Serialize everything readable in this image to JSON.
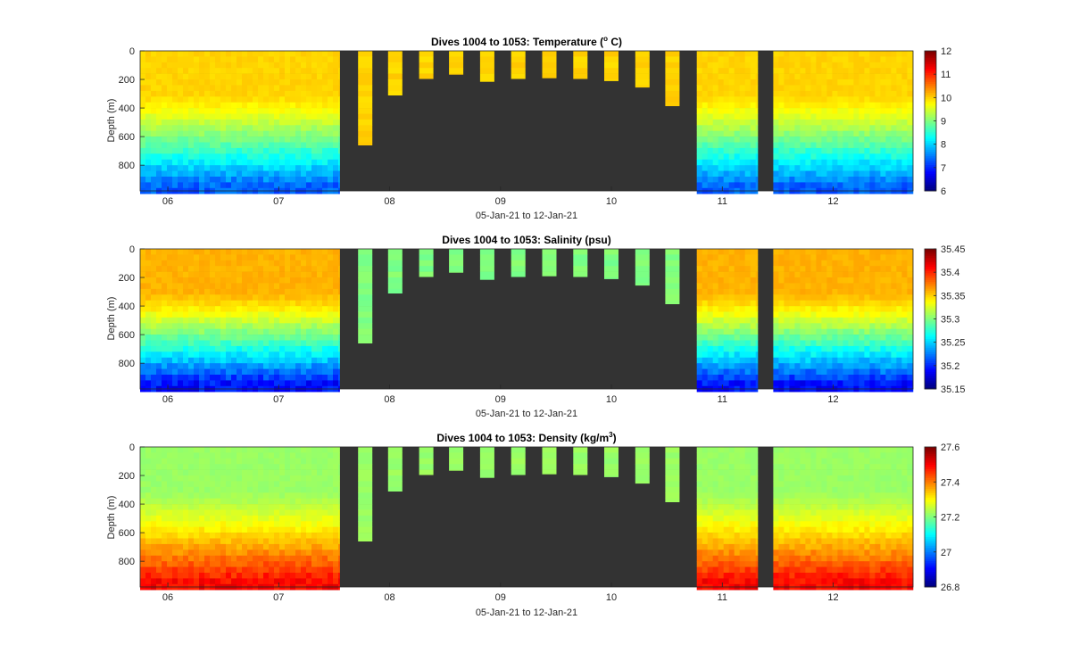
{
  "chart_data": [
    {
      "type": "heatmap",
      "title": "Dives 1004 to 1053: Temperature",
      "title_unit": "(",
      "title_unit_sup": "o",
      "title_unit_end": " C)",
      "xlabel": "05-Jan-21 to 12-Jan-21",
      "ylabel": "Depth (m)",
      "xticks": [
        "06",
        "07",
        "08",
        "09",
        "10",
        "11",
        "12"
      ],
      "yticks": [
        "0",
        "200",
        "400",
        "600",
        "800"
      ],
      "ylim": [
        0,
        980
      ],
      "colorbar": {
        "min": 6,
        "max": 12,
        "ticks": [
          "12",
          "11",
          "10",
          "9",
          "8",
          "7",
          "6"
        ]
      },
      "surface_value": 10.0,
      "deep_value": 7.3,
      "shallow_value": 10.0,
      "variability": 0.35
    },
    {
      "type": "heatmap",
      "title": "Dives 1004 to 1053: Salinity (psu)",
      "title_unit": "",
      "title_unit_sup": "",
      "title_unit_end": "",
      "xlabel": "05-Jan-21 to 12-Jan-21",
      "ylabel": "Depth (m)",
      "xticks": [
        "06",
        "07",
        "08",
        "09",
        "10",
        "11",
        "12"
      ],
      "yticks": [
        "0",
        "200",
        "400",
        "600",
        "800"
      ],
      "ylim": [
        0,
        980
      ],
      "colorbar": {
        "min": 35.15,
        "max": 35.45,
        "ticks": [
          "35.45",
          "35.4",
          "35.35",
          "35.3",
          "35.25",
          "35.2",
          "35.15"
        ]
      },
      "surface_value": 35.36,
      "deep_value": 35.19,
      "shallow_value": 35.3,
      "variability": 0.02
    },
    {
      "type": "heatmap",
      "title": "Dives 1004 to 1053: Density (kg/m",
      "title_unit": "",
      "title_unit_sup": "3",
      "title_unit_end": ")",
      "xlabel": "05-Jan-21 to 12-Jan-21",
      "ylabel": "Depth (m)",
      "xticks": [
        "06",
        "07",
        "08",
        "09",
        "10",
        "11",
        "12"
      ],
      "yticks": [
        "0",
        "200",
        "400",
        "600",
        "800"
      ],
      "ylim": [
        0,
        980
      ],
      "colorbar": {
        "min": 26.8,
        "max": 27.6,
        "ticks": [
          "27.6",
          "27.4",
          "27.2",
          "27",
          "26.8"
        ]
      },
      "surface_value": 27.22,
      "deep_value": 27.5,
      "shallow_value": 27.22,
      "variability": 0.04
    }
  ],
  "dives": {
    "day_range": [
      5.75,
      12.72
    ],
    "deep_segments": [
      [
        5.75,
        7.55
      ],
      [
        8.35,
        8.35
      ],
      [
        10.77,
        11.32
      ],
      [
        11.46,
        12.72
      ]
    ],
    "shallow_profiles": [
      {
        "day": 7.78,
        "max_depth": 660
      },
      {
        "day": 8.05,
        "max_depth": 310
      },
      {
        "day": 8.33,
        "max_depth": 195
      },
      {
        "day": 8.6,
        "max_depth": 165
      },
      {
        "day": 8.88,
        "max_depth": 215
      },
      {
        "day": 9.16,
        "max_depth": 195
      },
      {
        "day": 9.44,
        "max_depth": 190
      },
      {
        "day": 9.72,
        "max_depth": 195
      },
      {
        "day": 10.0,
        "max_depth": 210
      },
      {
        "day": 10.28,
        "max_depth": 255
      },
      {
        "day": 10.55,
        "max_depth": 385
      }
    ]
  },
  "colors": {
    "background_nodata": "#333333",
    "axis": "#262626"
  }
}
